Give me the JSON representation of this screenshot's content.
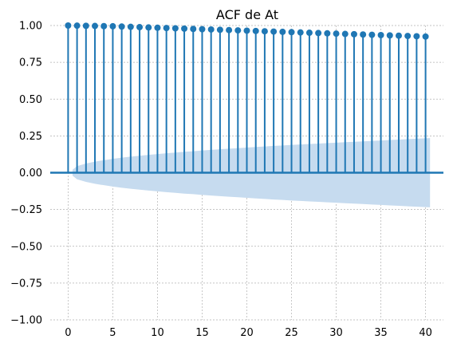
{
  "chart_data": {
    "type": "stem",
    "title": "ACF de At",
    "xlabel": "",
    "ylabel": "",
    "xlim": [
      -2,
      42
    ],
    "ylim": [
      -1.0,
      1.0
    ],
    "x_ticks": [
      0,
      5,
      10,
      15,
      20,
      25,
      30,
      35,
      40
    ],
    "x_tick_labels": [
      "0",
      "5",
      "10",
      "15",
      "20",
      "25",
      "30",
      "35",
      "40"
    ],
    "y_ticks": [
      -1.0,
      -0.75,
      -0.5,
      -0.25,
      0.0,
      0.25,
      0.5,
      0.75,
      1.0
    ],
    "y_tick_labels": [
      "−1.00",
      "−0.75",
      "−0.50",
      "−0.25",
      "0.00",
      "0.25",
      "0.50",
      "0.75",
      "1.00"
    ],
    "grid": true,
    "lags": [
      0,
      1,
      2,
      3,
      4,
      5,
      6,
      7,
      8,
      9,
      10,
      11,
      12,
      13,
      14,
      15,
      16,
      17,
      18,
      19,
      20,
      21,
      22,
      23,
      24,
      25,
      26,
      27,
      28,
      29,
      30,
      31,
      32,
      33,
      34,
      35,
      36,
      37,
      38,
      39,
      40
    ],
    "values": [
      1.0,
      0.999,
      0.998,
      0.997,
      0.996,
      0.995,
      0.993,
      0.991,
      0.989,
      0.987,
      0.985,
      0.983,
      0.981,
      0.979,
      0.977,
      0.975,
      0.973,
      0.971,
      0.969,
      0.967,
      0.965,
      0.963,
      0.961,
      0.959,
      0.957,
      0.955,
      0.953,
      0.951,
      0.949,
      0.947,
      0.945,
      0.943,
      0.941,
      0.939,
      0.937,
      0.935,
      0.933,
      0.931,
      0.929,
      0.927,
      0.925
    ],
    "confidence_band": {
      "lags": [
        0.5,
        1,
        2,
        3,
        4,
        5,
        6,
        7,
        8,
        9,
        10,
        11,
        12,
        13,
        14,
        15,
        16,
        17,
        18,
        19,
        20,
        21,
        22,
        23,
        24,
        25,
        26,
        27,
        28,
        29,
        30,
        31,
        32,
        33,
        34,
        35,
        36,
        37,
        38,
        39,
        40,
        40.5
      ],
      "upper": [
        0.02,
        0.045,
        0.062,
        0.075,
        0.085,
        0.094,
        0.102,
        0.109,
        0.115,
        0.121,
        0.127,
        0.132,
        0.137,
        0.142,
        0.146,
        0.151,
        0.155,
        0.159,
        0.163,
        0.167,
        0.171,
        0.175,
        0.178,
        0.182,
        0.185,
        0.189,
        0.192,
        0.195,
        0.198,
        0.201,
        0.204,
        0.207,
        0.21,
        0.213,
        0.216,
        0.219,
        0.222,
        0.225,
        0.228,
        0.231,
        0.234,
        0.235
      ]
    },
    "colors": {
      "stem": "#1f77b4",
      "band": "#c6dbef",
      "zero_line": "#1f77b4"
    }
  }
}
